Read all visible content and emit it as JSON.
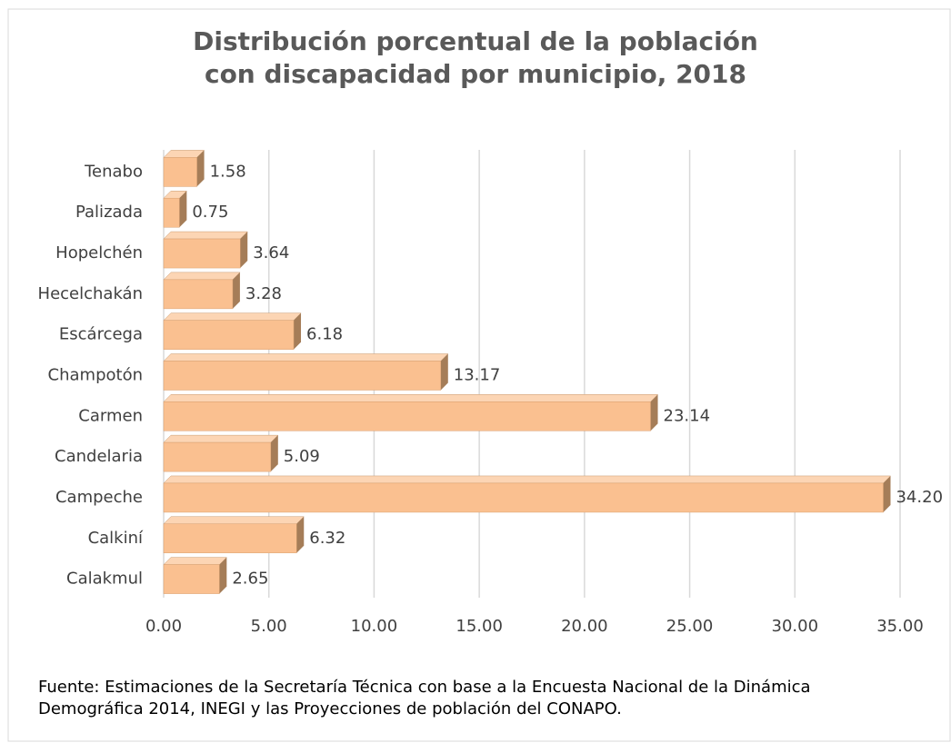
{
  "chart_data": {
    "type": "bar",
    "orientation": "horizontal",
    "title": "Distribución porcentual de la población con discapacidad por municipio, 2018",
    "categories": [
      "Tenabo",
      "Palizada",
      "Hopelchén",
      "Hecelchakán",
      "Escárcega",
      "Champotón",
      "Carmen",
      "Candelaria",
      "Campeche",
      "Calkiní",
      "Calakmul"
    ],
    "values": [
      1.58,
      0.75,
      3.64,
      3.28,
      6.18,
      13.17,
      23.14,
      5.09,
      34.2,
      6.32,
      2.65
    ],
    "value_labels": [
      "1.58",
      "0.75",
      "3.64",
      "3.28",
      "6.18",
      "13.17",
      "23.14",
      "5.09",
      "34.20",
      "6.32",
      "2.65"
    ],
    "color": "#fac090",
    "xlim": [
      0,
      35
    ],
    "xticks": [
      {
        "value": 0,
        "label": "0.00"
      },
      {
        "value": 5,
        "label": "5.00"
      },
      {
        "value": 10,
        "label": "10.00"
      },
      {
        "value": 15,
        "label": "15.00"
      },
      {
        "value": 20,
        "label": "20.00"
      },
      {
        "value": 25,
        "label": "25.00"
      },
      {
        "value": 30,
        "label": "30.00"
      },
      {
        "value": 35,
        "label": "35.00"
      }
    ],
    "grid": true,
    "source": "Fuente: Estimaciones de la Secretaría Técnica con base a la Encuesta Nacional de la Dinámica Demográfica 2014, INEGI y las Proyecciones de población del CONAPO."
  }
}
